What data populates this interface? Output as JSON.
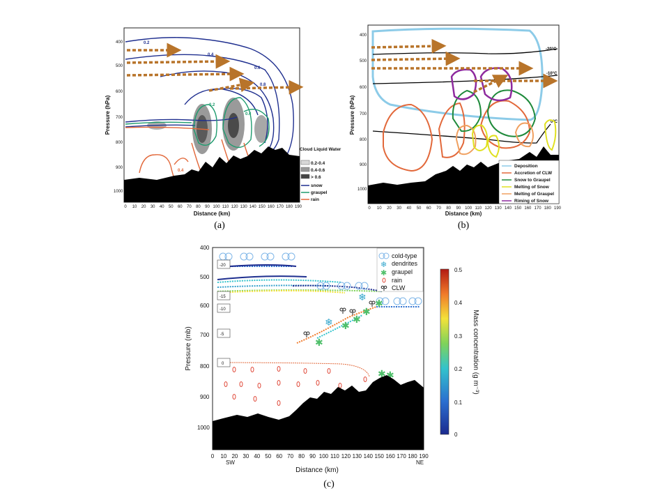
{
  "panels": {
    "a": {
      "caption": "(a)",
      "xlabel": "Distance (km)",
      "ylabel": "Pressure (hPa)",
      "x_ticks": [
        "0",
        "10",
        "20",
        "30",
        "40",
        "50",
        "60",
        "70",
        "80",
        "90",
        "100",
        "110",
        "120",
        "130",
        "140",
        "150",
        "160",
        "170",
        "180",
        "190"
      ],
      "y_ticks": [
        "400",
        "500",
        "600",
        "700",
        "800",
        "900",
        "1000"
      ],
      "legend_title": "Cloud Liquid Water",
      "legend_items": [
        "0.2-0.4",
        "0.4-0.6",
        "> 0.6",
        "snow",
        "graupel",
        "rain"
      ],
      "contour_labels": [
        "0.2",
        "0.4",
        "0.6",
        "0.8",
        "0.2",
        "0.4",
        "0.4"
      ]
    },
    "b": {
      "caption": "(b)",
      "xlabel": "Distance (km)",
      "ylabel": "Pressure (hPa)",
      "x_ticks": [
        "0",
        "10",
        "20",
        "30",
        "40",
        "50",
        "60",
        "70",
        "80",
        "90",
        "100",
        "110",
        "120",
        "130",
        "140",
        "150",
        "160",
        "170",
        "180",
        "190"
      ],
      "y_ticks": [
        "400",
        "500",
        "600",
        "700",
        "800",
        "900",
        "1000"
      ],
      "legend_items": [
        "Deposition",
        "Accretion of CLW",
        "Snow to Graupel",
        "Melting of Snow",
        "Melting of Graupel",
        "Riming of Snow"
      ],
      "isotherm_labels": [
        "-20°C",
        "-10°C",
        "0°C"
      ]
    },
    "c": {
      "caption": "(c)",
      "xlabel": "Distance (km)",
      "ylabel": "Pressure (mb)",
      "x_ticks": [
        "0",
        "10",
        "20",
        "30",
        "40",
        "50",
        "60",
        "70",
        "80",
        "90",
        "100",
        "110",
        "120",
        "130",
        "140",
        "150",
        "160",
        "170",
        "180",
        "190"
      ],
      "y_ticks": [
        "400",
        "500",
        "600",
        "700",
        "800",
        "900",
        "1000"
      ],
      "dir_left": "SW",
      "dir_right": "NE",
      "legend_items": [
        "cold-type",
        "dendrites",
        "graupel",
        "rain",
        "CLW"
      ],
      "isotherm_boxes": [
        "-20",
        "-15",
        "-10",
        "-5",
        "0"
      ],
      "colorbar_label": "Mass concentration (g m⁻³)",
      "colorbar_ticks": [
        "0.5",
        "0.4",
        "0.3",
        "0.2",
        "0.1",
        "0"
      ]
    }
  },
  "colors": {
    "snow": "#1f2f8f",
    "graupel": "#1e9b6e",
    "rain": "#e2683a",
    "arrow": "#b8742a",
    "deposition": "#8ccbe8",
    "accretion": "#e2683a",
    "snow_to_graupel": "#1e8a3a",
    "melting_snow": "#e0e020",
    "melting_graupel": "#f0a060",
    "riming": "#8e2a9e",
    "terrain": "#000000"
  }
}
